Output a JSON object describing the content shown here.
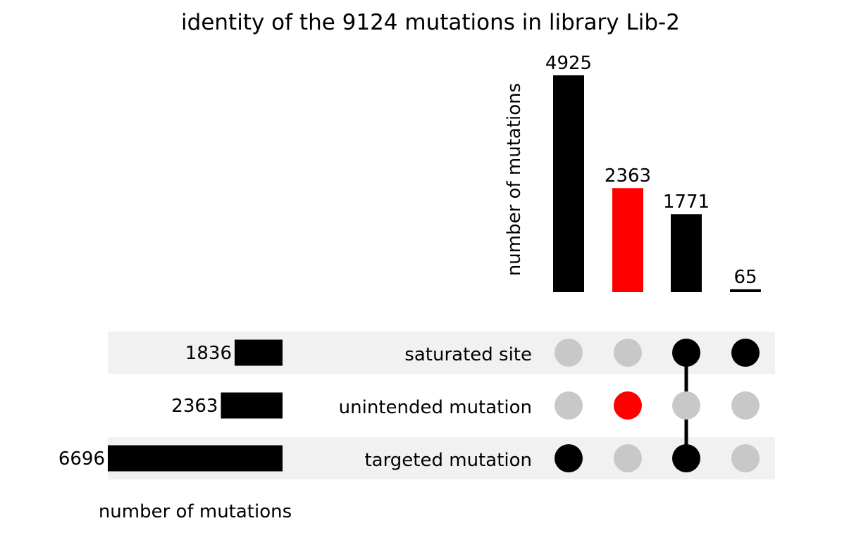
{
  "chart_data": {
    "type": "upset",
    "title": "identity of the 9124 mutations in library Lib-2",
    "intersection_axis_label": "number of mutations",
    "set_axis_label": "number of mutations",
    "sets": [
      {
        "name": "saturated site",
        "size": 1836
      },
      {
        "name": "unintended mutation",
        "size": 2363
      },
      {
        "name": "targeted mutation",
        "size": 6696
      }
    ],
    "intersections": [
      {
        "value": 4925,
        "members": [
          "targeted mutation"
        ],
        "color": "#000000"
      },
      {
        "value": 2363,
        "members": [
          "unintended mutation"
        ],
        "color": "#ff0000"
      },
      {
        "value": 1771,
        "members": [
          "saturated site",
          "targeted mutation"
        ],
        "color": "#000000"
      },
      {
        "value": 65,
        "members": [
          "saturated site"
        ],
        "color": "#000000"
      }
    ],
    "dot_inactive_color": "#c8c8c8",
    "row_shading_color": "#f1f1f1"
  }
}
